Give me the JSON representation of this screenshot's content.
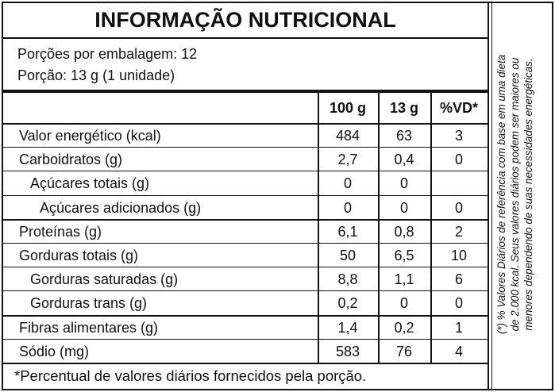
{
  "header": {
    "title": "INFORMAÇÃO NUTRICIONAL",
    "servings_per_package": "Porções por embalagem: 12",
    "serving_size": "Porção: 13 g (1 unidade)"
  },
  "table": {
    "columns": [
      "100 g",
      "13 g",
      "%VD*"
    ],
    "rows": [
      [
        "Valor energético (kcal)",
        "484",
        "63",
        "3"
      ],
      [
        "Carboidratos (g)",
        "2,7",
        "0,4",
        "0"
      ],
      [
        "Açúcares totais (g)",
        "0",
        "0",
        null
      ],
      [
        "Açúcares adicionados (g)",
        "0",
        "0",
        "0"
      ],
      [
        "Proteínas (g)",
        "6,1",
        "0,8",
        "2"
      ],
      [
        "Gorduras totais (g)",
        "50",
        "6,5",
        "10"
      ],
      [
        "Gorduras saturadas (g)",
        "8,8",
        "1,1",
        "6"
      ],
      [
        "Gorduras trans (g)",
        "0,2",
        "0",
        "0"
      ],
      [
        "Fibras alimentares (g)",
        "1,4",
        "0,2",
        "1"
      ],
      [
        "Sódio (mg)",
        "583",
        "76",
        "4"
      ]
    ]
  },
  "footnote": "*Percentual de valores diários fornecidos pela porção.",
  "side_note": [
    "(*) % Valores Diários de referência com base em uma dieta",
    "de 2.000 kcal. Seus valores diários podem ser maiores ou",
    "menores dependendo de suas necessidades energéticas."
  ]
}
